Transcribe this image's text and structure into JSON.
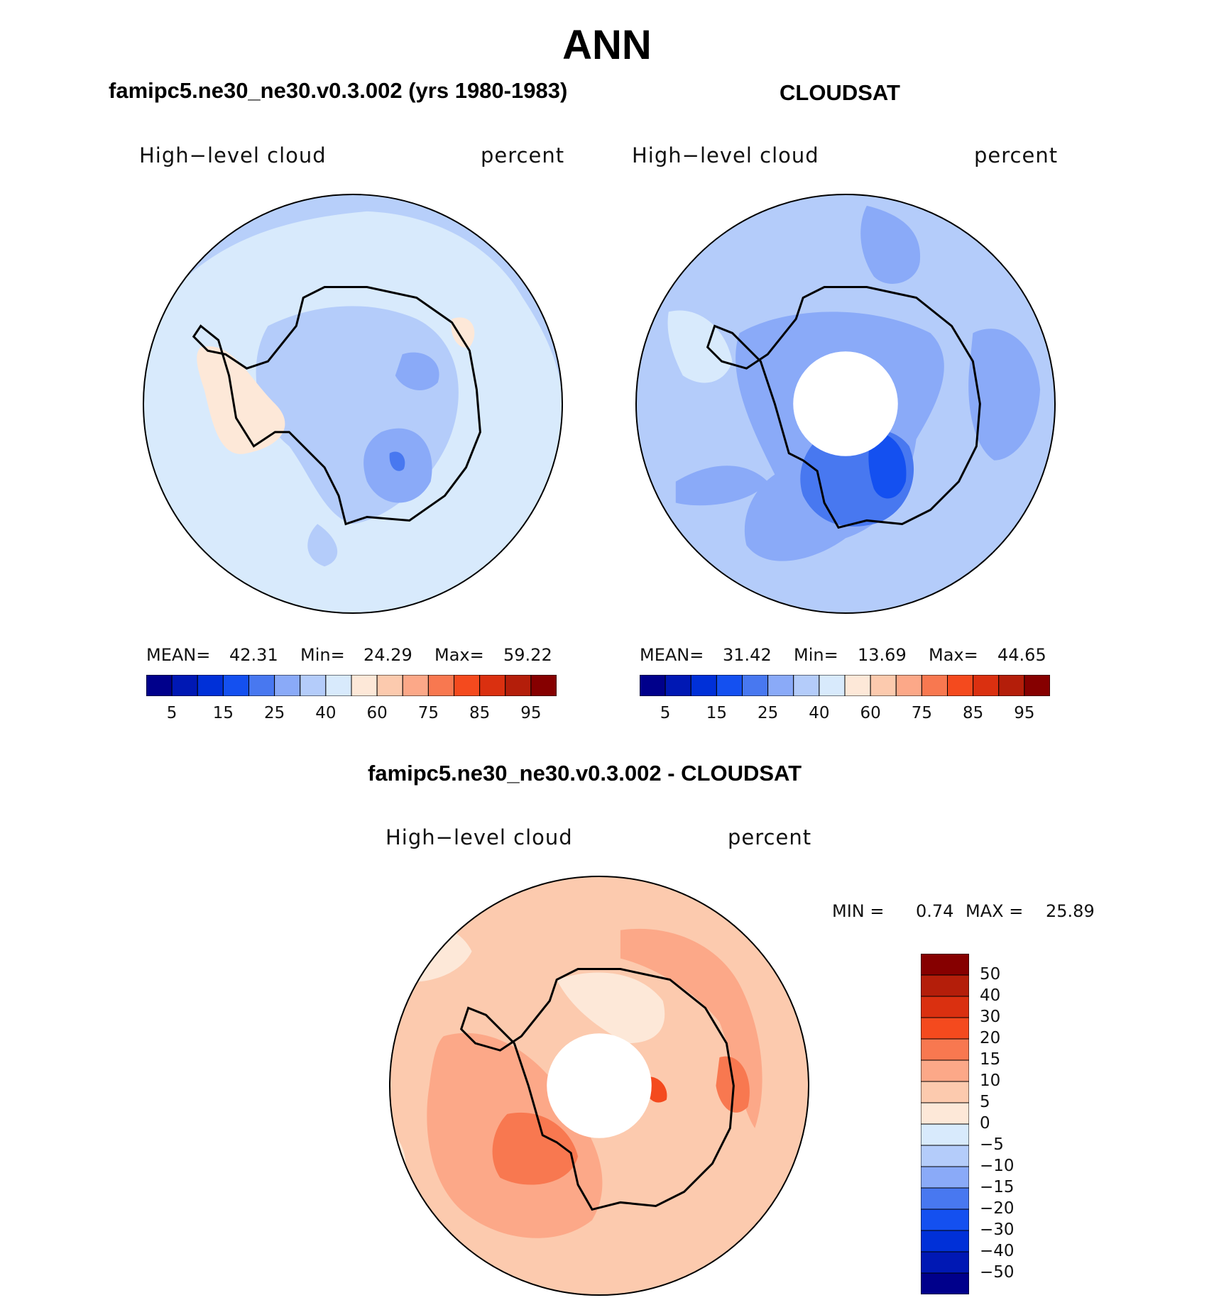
{
  "header": {
    "title": "ANN"
  },
  "panels": {
    "model": {
      "title": "famipc5.ne30_ne30.v0.3.002 (yrs 1980-1983)",
      "variable": "High−level cloud",
      "units": "percent",
      "stats": {
        "mean_label": "MEAN=",
        "mean": "42.31",
        "min_label": "Min=",
        "min": "24.29",
        "max_label": "Max=",
        "max": "59.22"
      }
    },
    "obs": {
      "title": "CLOUDSAT",
      "variable": "High−level cloud",
      "units": "percent",
      "stats": {
        "mean_label": "MEAN=",
        "mean": "31.42",
        "min_label": "Min=",
        "min": "13.69",
        "max_label": "Max=",
        "max": "44.65"
      }
    },
    "diff": {
      "title": "famipc5.ne30_ne30.v0.3.002 - CLOUDSAT",
      "variable": "High−level cloud",
      "units": "percent",
      "stats": {
        "min_label": "MIN =",
        "min": "0.74",
        "max_label": "MAX =",
        "max": "25.89"
      }
    }
  },
  "colorbars": {
    "top": {
      "colors": [
        "#00008b",
        "#0018b4",
        "#0030d8",
        "#1450f0",
        "#4878f0",
        "#8aaaf8",
        "#b4ccfa",
        "#d8eafc",
        "#fde8d8",
        "#fccaae",
        "#fca888",
        "#f87850",
        "#f44a1e",
        "#da3010",
        "#b41e0a",
        "#860000"
      ],
      "labels": [
        "5",
        "15",
        "25",
        "40",
        "60",
        "75",
        "85",
        "95"
      ]
    },
    "diff": {
      "colors": [
        "#860000",
        "#b41e0a",
        "#da3010",
        "#f44a1e",
        "#f87850",
        "#fca888",
        "#fccaae",
        "#fde8d8",
        "#d8eafc",
        "#b4ccfa",
        "#8aaaf8",
        "#4878f0",
        "#1450f0",
        "#0030d8",
        "#0018b4",
        "#00008b"
      ],
      "labels": [
        "50",
        "40",
        "30",
        "20",
        "15",
        "10",
        "5",
        "0",
        "−5",
        "−10",
        "−15",
        "−20",
        "−30",
        "−40",
        "−50"
      ]
    }
  },
  "map_colors": {
    "model_base": "#d8eafc",
    "obs_base": "#b4ccfa",
    "diff_base": "#fccaae",
    "coast": "#000000"
  }
}
